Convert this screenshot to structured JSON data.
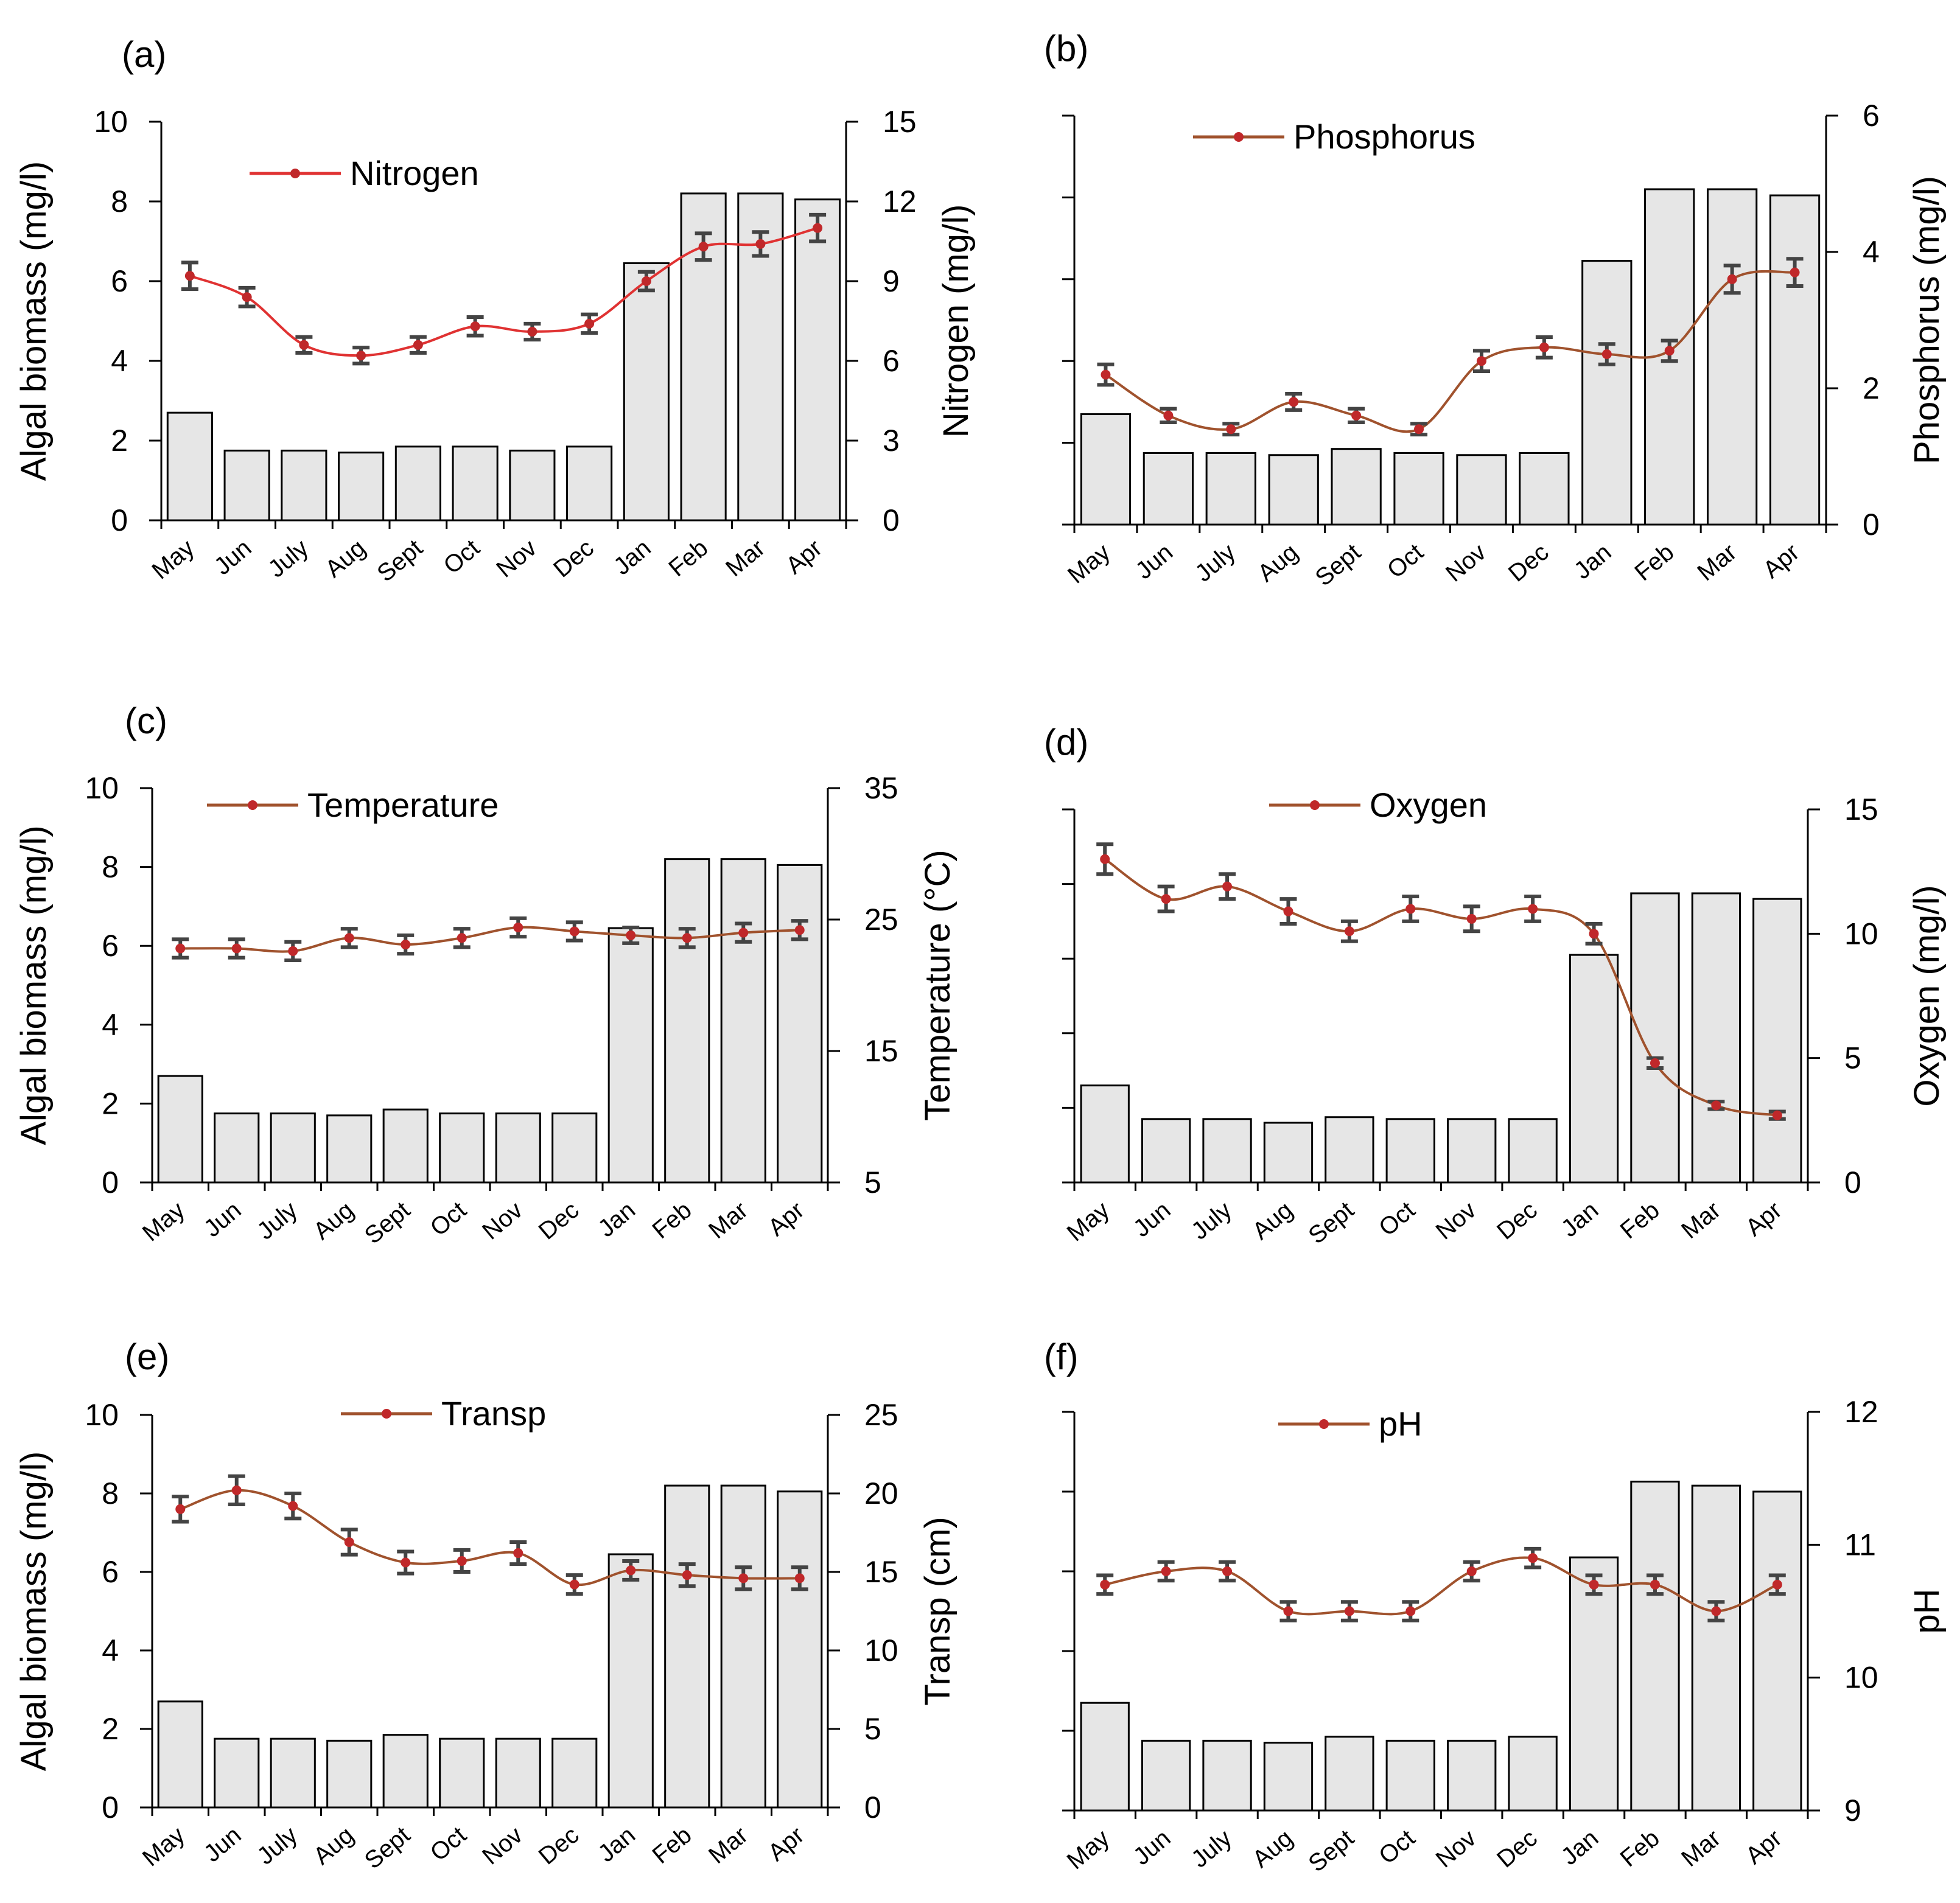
{
  "months": [
    "May",
    "Jun",
    "July",
    "Aug",
    "Sept",
    "Oct",
    "Nov",
    "Dec",
    "Jan",
    "Feb",
    "Mar",
    "Apr"
  ],
  "algal_biomass": [
    2.7,
    1.75,
    1.75,
    1.7,
    1.85,
    1.85,
    1.75,
    1.85,
    6.45,
    8.2,
    8.2,
    8.05
  ],
  "colors": {
    "bar_fill": "#e6e6e6",
    "bar_stroke": "#000000",
    "error_bar": "#444444",
    "nitrogen_line": "#e03232",
    "brown_line": "#a0522d",
    "marker": "#c0282a"
  },
  "chart_data": [
    {
      "type": "bar",
      "panel_label": "(a)",
      "categories": [
        "May",
        "Jun",
        "July",
        "Aug",
        "Sept",
        "Oct",
        "Nov",
        "Dec",
        "Jan",
        "Feb",
        "Mar",
        "Apr"
      ],
      "ylabel_left": "Algal biomass (mg/l)",
      "ylim_left": [
        0,
        10
      ],
      "yticks_left": [
        "0",
        "2",
        "4",
        "6",
        "8",
        "10"
      ],
      "ylabel_right": "Nitrogen (mg/l)",
      "ylim_right": [
        0,
        15
      ],
      "yticks_right": [
        "0",
        "3",
        "6",
        "9",
        "12",
        "15"
      ],
      "series": [
        {
          "name": "Algal biomass",
          "kind": "bar",
          "axis": "left",
          "values": [
            2.7,
            1.75,
            1.75,
            1.7,
            1.85,
            1.85,
            1.75,
            1.85,
            6.45,
            8.2,
            8.2,
            8.05
          ]
        },
        {
          "name": "Nitrogen",
          "kind": "line",
          "axis": "right",
          "values": [
            9.2,
            8.4,
            6.6,
            6.2,
            6.6,
            7.3,
            7.1,
            7.4,
            9.0,
            10.3,
            10.4,
            11.0
          ],
          "error": [
            0.5,
            0.35,
            0.3,
            0.3,
            0.3,
            0.35,
            0.3,
            0.35,
            0.35,
            0.5,
            0.45,
            0.5
          ]
        }
      ],
      "legend": "top-left"
    },
    {
      "type": "bar",
      "panel_label": "(b)",
      "categories": [
        "May",
        "Jun",
        "July",
        "Aug",
        "Sept",
        "Oct",
        "Nov",
        "Dec",
        "Jan",
        "Feb",
        "Mar",
        "Apr"
      ],
      "ylabel_left": "",
      "ylim_left": [
        0,
        10
      ],
      "yticks_left": [],
      "ylabel_right": "Phosphorus (mg/l)",
      "ylim_right": [
        0,
        6
      ],
      "yticks_right": [
        "0",
        "2",
        "4",
        "6"
      ],
      "series": [
        {
          "name": "Algal biomass",
          "kind": "bar",
          "axis": "left",
          "values": [
            2.7,
            1.75,
            1.75,
            1.7,
            1.85,
            1.75,
            1.7,
            1.75,
            6.45,
            8.2,
            8.2,
            8.05
          ]
        },
        {
          "name": "Phosphorus",
          "kind": "line",
          "axis": "right",
          "values": [
            2.2,
            1.6,
            1.4,
            1.8,
            1.6,
            1.4,
            2.4,
            2.6,
            2.5,
            2.55,
            3.6,
            3.7
          ],
          "error": [
            0.15,
            0.1,
            0.08,
            0.12,
            0.1,
            0.08,
            0.15,
            0.15,
            0.15,
            0.15,
            0.2,
            0.2
          ]
        }
      ],
      "legend": "top-left"
    },
    {
      "type": "bar",
      "panel_label": "(c)",
      "categories": [
        "May",
        "Jun",
        "July",
        "Aug",
        "Sept",
        "Oct",
        "Nov",
        "Dec",
        "Jan",
        "Feb",
        "Mar",
        "Apr"
      ],
      "ylabel_left": "Algal biomass (mg/l)",
      "ylim_left": [
        0,
        10
      ],
      "yticks_left": [
        "0",
        "2",
        "4",
        "6",
        "8",
        "10"
      ],
      "ylabel_right": "Temperature (°C)",
      "ylim_right": [
        5,
        35
      ],
      "yticks_right": [
        "5",
        "15",
        "25",
        "35"
      ],
      "series": [
        {
          "name": "Algal biomass",
          "kind": "bar",
          "axis": "left",
          "values": [
            2.7,
            1.75,
            1.75,
            1.7,
            1.85,
            1.75,
            1.75,
            1.75,
            6.45,
            8.2,
            8.2,
            8.05
          ]
        },
        {
          "name": "Temperature",
          "kind": "line",
          "axis": "right",
          "values": [
            22.8,
            22.8,
            22.6,
            23.6,
            23.1,
            23.6,
            24.4,
            24.1,
            23.8,
            23.6,
            24.0,
            24.2
          ],
          "error": [
            0.7,
            0.7,
            0.7,
            0.7,
            0.7,
            0.7,
            0.7,
            0.7,
            0.6,
            0.7,
            0.7,
            0.7
          ]
        }
      ],
      "legend": "top-left"
    },
    {
      "type": "bar",
      "panel_label": "(d)",
      "categories": [
        "May",
        "Jun",
        "July",
        "Aug",
        "Sept",
        "Oct",
        "Nov",
        "Dec",
        "Jan",
        "Feb",
        "Mar",
        "Apr"
      ],
      "ylabel_left": "",
      "ylim_left": [
        0,
        10
      ],
      "yticks_left": [],
      "ylabel_right": "Oxygen (mg/l)",
      "ylim_right": [
        0,
        15
      ],
      "yticks_right": [
        "0",
        "5",
        "10",
        "15"
      ],
      "series": [
        {
          "name": "Algal biomass",
          "kind": "bar",
          "axis": "left",
          "values": [
            2.6,
            1.7,
            1.7,
            1.6,
            1.75,
            1.7,
            1.7,
            1.7,
            6.1,
            7.75,
            7.75,
            7.6
          ]
        },
        {
          "name": "Oxygen",
          "kind": "line",
          "axis": "right",
          "values": [
            13.0,
            11.4,
            11.9,
            10.9,
            10.1,
            11.0,
            10.6,
            11.0,
            10.0,
            4.8,
            3.1,
            2.7
          ],
          "error": [
            0.6,
            0.5,
            0.5,
            0.5,
            0.4,
            0.5,
            0.5,
            0.5,
            0.4,
            0.2,
            0.15,
            0.15
          ]
        }
      ],
      "legend": "top-left"
    },
    {
      "type": "bar",
      "panel_label": "(e)",
      "categories": [
        "May",
        "Jun",
        "July",
        "Aug",
        "Sept",
        "Oct",
        "Nov",
        "Dec",
        "Jan",
        "Feb",
        "Mar",
        "Apr"
      ],
      "ylabel_left": "Algal biomass (mg/l)",
      "ylim_left": [
        0,
        10
      ],
      "yticks_left": [
        "0",
        "2",
        "4",
        "6",
        "8",
        "10"
      ],
      "ylabel_right": "Transp (cm)",
      "ylim_right": [
        0,
        25
      ],
      "yticks_right": [
        "0",
        "5",
        "10",
        "15",
        "20",
        "25"
      ],
      "series": [
        {
          "name": "Algal biomass",
          "kind": "bar",
          "axis": "left",
          "values": [
            2.7,
            1.75,
            1.75,
            1.7,
            1.85,
            1.75,
            1.75,
            1.75,
            6.45,
            8.2,
            8.2,
            8.05
          ]
        },
        {
          "name": "Transp",
          "kind": "line",
          "axis": "right",
          "values": [
            19.0,
            20.2,
            19.2,
            16.9,
            15.6,
            15.7,
            16.2,
            14.2,
            15.1,
            14.8,
            14.6,
            14.6
          ],
          "error": [
            0.8,
            0.9,
            0.8,
            0.8,
            0.7,
            0.7,
            0.7,
            0.6,
            0.6,
            0.7,
            0.7,
            0.7
          ]
        }
      ],
      "legend": "top-center"
    },
    {
      "type": "bar",
      "panel_label": "(f)",
      "categories": [
        "May",
        "Jun",
        "July",
        "Aug",
        "Sept",
        "Oct",
        "Nov",
        "Dec",
        "Jan",
        "Feb",
        "Mar",
        "Apr"
      ],
      "ylabel_left": "",
      "ylim_left": [
        0,
        10
      ],
      "yticks_left": [],
      "ylabel_right": "pH",
      "ylim_right": [
        9,
        12
      ],
      "yticks_right": [
        "9",
        "10",
        "11",
        "12"
      ],
      "series": [
        {
          "name": "Algal biomass",
          "kind": "bar",
          "axis": "left",
          "values": [
            2.7,
            1.75,
            1.75,
            1.7,
            1.85,
            1.75,
            1.75,
            1.85,
            6.35,
            8.25,
            8.15,
            8.0
          ]
        },
        {
          "name": "pH",
          "kind": "line",
          "axis": "right",
          "values": [
            10.7,
            10.8,
            10.8,
            10.5,
            10.5,
            10.5,
            10.8,
            10.9,
            10.7,
            10.7,
            10.5,
            10.7
          ],
          "error": [
            0.07,
            0.07,
            0.07,
            0.07,
            0.07,
            0.07,
            0.07,
            0.07,
            0.07,
            0.07,
            0.07,
            0.07
          ]
        }
      ],
      "legend": "top-center"
    }
  ]
}
